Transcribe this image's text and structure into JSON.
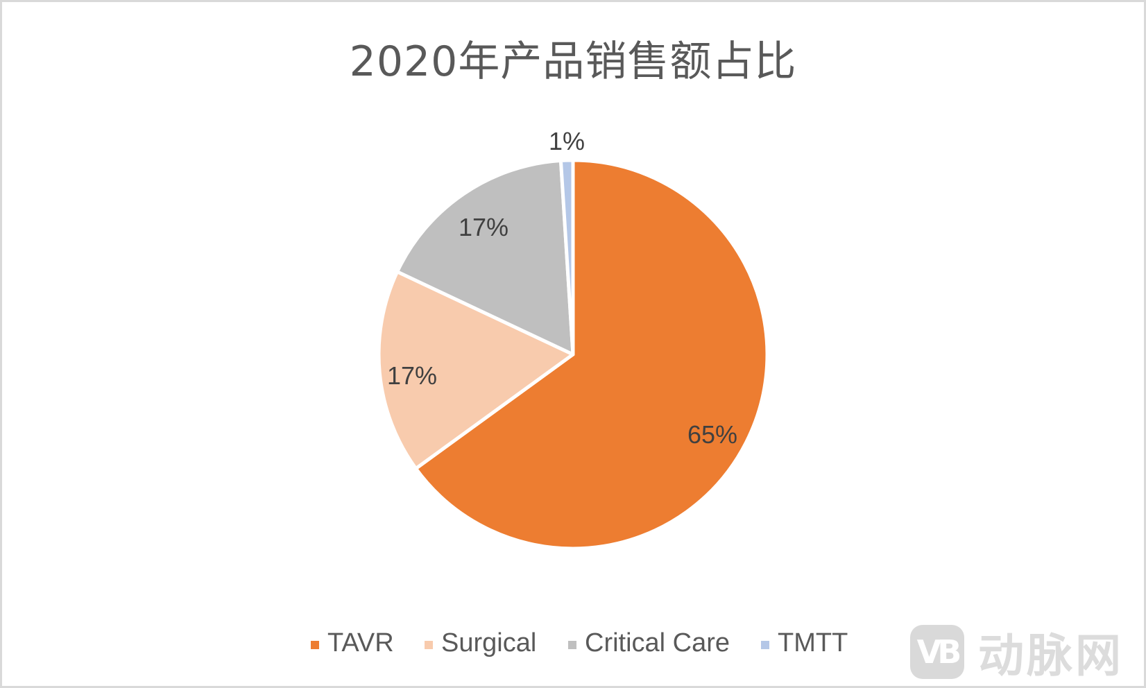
{
  "title": "2020年产品销售额占比",
  "chart_data": {
    "type": "pie",
    "title": "2020年产品销售额占比",
    "categories": [
      "TAVR",
      "Surgical",
      "Critical Care",
      "TMTT"
    ],
    "values": [
      65,
      17,
      17,
      1
    ],
    "unit": "%",
    "data_labels": [
      "65%",
      "17%",
      "17%",
      "1%"
    ],
    "colors": [
      "#ED7D31",
      "#F8CBAD",
      "#BFBFBF",
      "#B4C7E7"
    ],
    "start_angle_deg": 0,
    "direction": "clockwise",
    "legend_position": "bottom"
  },
  "legend": {
    "items": [
      {
        "label": "TAVR",
        "color": "#ED7D31"
      },
      {
        "label": "Surgical",
        "color": "#F8CBAD"
      },
      {
        "label": "Critical Care",
        "color": "#BFBFBF"
      },
      {
        "label": "TMTT",
        "color": "#B4C7E7"
      }
    ]
  },
  "labels": {
    "tavr": "65%",
    "surgical": "17%",
    "critical_care": "17%",
    "tmtt": "1%"
  },
  "watermark": {
    "logo": "VB",
    "text": "动脉网"
  }
}
